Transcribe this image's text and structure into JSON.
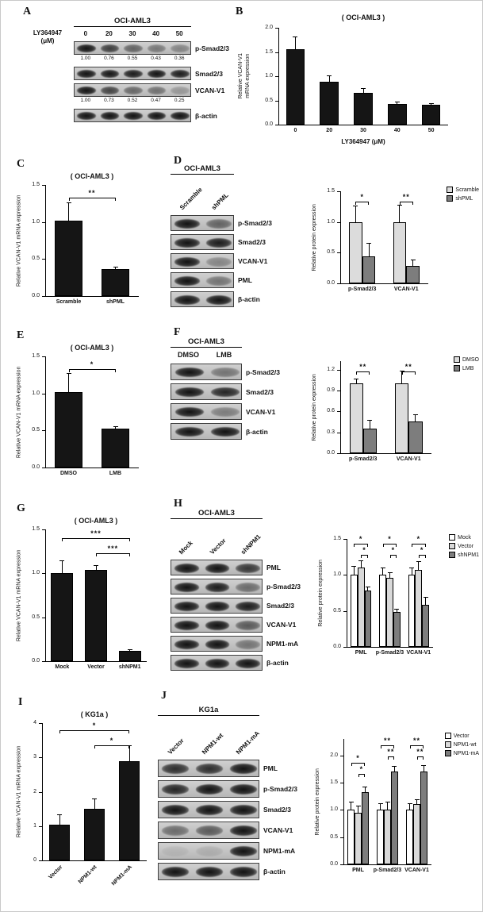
{
  "figure": {
    "panel_labels": [
      "A",
      "B",
      "C",
      "D",
      "E",
      "F",
      "G",
      "H",
      "I",
      "J"
    ]
  },
  "blots": [
    {
      "panel": "A",
      "title": "OCI-AML3",
      "title_underline": true,
      "treatment": {
        "line1": "LY364947",
        "line2": "(μM)"
      },
      "lanes": [
        "0",
        "20",
        "30",
        "40",
        "50"
      ],
      "lane_style": "horizontal",
      "rows": [
        {
          "name": "p-Smad2/3",
          "intensities": [
            1,
            0.76,
            0.55,
            0.43,
            0.36
          ],
          "values": [
            "1.00",
            "0.76",
            "0.55",
            "0.43",
            "0.36"
          ]
        },
        {
          "name": "Smad2/3",
          "intensities": [
            1,
            0.98,
            0.95,
            1,
            0.95
          ]
        },
        {
          "name": "VCAN-V1",
          "intensities": [
            1,
            0.73,
            0.52,
            0.47,
            0.25
          ],
          "values": [
            "1.00",
            "0.73",
            "0.52",
            "0.47",
            "0.25"
          ]
        },
        {
          "name": "β-actin",
          "intensities": [
            1,
            1,
            1,
            1,
            1
          ]
        }
      ]
    },
    {
      "panel": "D",
      "title": "OCI-AML3",
      "title_underline": true,
      "lanes": [
        "Scramble",
        "shPML"
      ],
      "lane_style": "rotated",
      "rows": [
        {
          "name": "p-Smad2/3",
          "intensities": [
            1,
            0.55
          ]
        },
        {
          "name": "Smad2/3",
          "intensities": [
            1,
            0.95
          ]
        },
        {
          "name": "VCAN-V1",
          "intensities": [
            1,
            0.35
          ]
        },
        {
          "name": "PML",
          "intensities": [
            1,
            0.45
          ]
        },
        {
          "name": "β-actin",
          "intensities": [
            1,
            1
          ]
        }
      ]
    },
    {
      "panel": "F",
      "title": "OCI-AML3",
      "title_underline": true,
      "lanes": [
        "DMSO",
        "LMB"
      ],
      "lane_style": "bold-horizontal",
      "rows": [
        {
          "name": "p-Smad2/3",
          "intensities": [
            1,
            0.45
          ]
        },
        {
          "name": "Smad2/3",
          "intensities": [
            1,
            0.9
          ]
        },
        {
          "name": "VCAN-V1",
          "intensities": [
            1,
            0.4
          ]
        },
        {
          "name": "β-actin",
          "intensities": [
            1,
            1
          ]
        }
      ]
    },
    {
      "panel": "H",
      "title": "OCI-AML3",
      "title_underline": true,
      "lanes": [
        "Mock",
        "Vector",
        "shNPM1"
      ],
      "lane_style": "rotated",
      "rows": [
        {
          "name": "PML",
          "intensities": [
            1,
            1,
            0.8
          ]
        },
        {
          "name": "p-Smad2/3",
          "intensities": [
            1,
            0.95,
            0.5
          ]
        },
        {
          "name": "Smad2/3",
          "intensities": [
            1,
            1,
            0.95
          ]
        },
        {
          "name": "VCAN-V1",
          "intensities": [
            1,
            1,
            0.6
          ]
        },
        {
          "name": "NPM1-mA",
          "intensities": [
            1,
            1,
            0.45
          ]
        },
        {
          "name": "β-actin",
          "intensities": [
            1,
            1,
            1
          ]
        }
      ]
    },
    {
      "panel": "J",
      "title": "KG1a",
      "title_underline": true,
      "lanes": [
        "Vector",
        "NPM1-wt",
        "NPM1-mA"
      ],
      "lane_style": "rotated",
      "rows": [
        {
          "name": "PML",
          "intensities": [
            0.85,
            0.85,
            1
          ]
        },
        {
          "name": "p-Smad2/3",
          "intensities": [
            0.9,
            1,
            1
          ]
        },
        {
          "name": "Smad2/3",
          "intensities": [
            1,
            1,
            1
          ]
        },
        {
          "name": "VCAN-V1",
          "intensities": [
            0.5,
            0.6,
            1
          ]
        },
        {
          "name": "NPM1-mA",
          "intensities": [
            0.08,
            0.12,
            1
          ]
        },
        {
          "name": "β-actin",
          "intensities": [
            1,
            1,
            1
          ]
        }
      ]
    }
  ],
  "chart_data": [
    {
      "panel": "B",
      "type": "bar",
      "title": "( OCI-AML3 )",
      "ylabel": "Relative VCAN-V1\nmRNA expression",
      "xlabel": "LY364947 (μM)",
      "ylim": [
        0,
        2.0
      ],
      "yticks": [
        0,
        0.5,
        1.0,
        1.5,
        2.0
      ],
      "ytick_labels": [
        "0.0",
        "0.5",
        "1.0",
        "1.5",
        "2.0"
      ],
      "categories": [
        "0",
        "20",
        "30",
        "40",
        "50"
      ],
      "series": [
        {
          "name": "",
          "color": "#151515",
          "values": [
            1.55,
            0.88,
            0.65,
            0.42,
            0.41
          ],
          "errors": [
            0.27,
            0.13,
            0.1,
            0.05,
            0.04
          ]
        }
      ],
      "sig": []
    },
    {
      "panel": "C",
      "type": "bar",
      "title": "( OCI-AML3 )",
      "ylabel": "Relative VCAN-V1 mRNA expression",
      "ylim": [
        0,
        1.5
      ],
      "yticks": [
        0,
        0.5,
        1.0,
        1.5
      ],
      "ytick_labels": [
        "0.0",
        "0.5",
        "1.0",
        "1.5"
      ],
      "categories": [
        "Scramble",
        "shPML"
      ],
      "series": [
        {
          "name": "",
          "color": "#151515",
          "values": [
            1.02,
            0.36
          ],
          "errors": [
            0.24,
            0.04
          ]
        }
      ],
      "sig": [
        {
          "a": [
            0,
            0
          ],
          "b": [
            1,
            0
          ],
          "y": 1.33,
          "label": "**"
        }
      ]
    },
    {
      "panel": "D",
      "type": "bar",
      "title": "",
      "ylabel": "Relative protein expression",
      "ylim": [
        0,
        1.5
      ],
      "yticks": [
        0,
        0.5,
        1.0,
        1.5
      ],
      "ytick_labels": [
        "0.0",
        "0.5",
        "1.0",
        "1.5"
      ],
      "categories": [
        "p-Smad2/3",
        "VCAN-V1"
      ],
      "series": [
        {
          "name": "Scramble",
          "color": "#dcdcdc",
          "values": [
            1.0,
            1.0
          ],
          "errors": [
            0.27,
            0.28
          ]
        },
        {
          "name": "shPML",
          "color": "#7d7d7d",
          "values": [
            0.44,
            0.29
          ],
          "errors": [
            0.22,
            0.1
          ]
        }
      ],
      "sig": [
        {
          "a": [
            0,
            0
          ],
          "b": [
            0,
            1
          ],
          "y": 1.33,
          "label": "*"
        },
        {
          "a": [
            1,
            0
          ],
          "b": [
            1,
            1
          ],
          "y": 1.33,
          "label": "**"
        }
      ]
    },
    {
      "panel": "E",
      "type": "bar",
      "title": "( OCI-AML3 )",
      "ylabel": "Relative VCAN-V1 mRNA expression",
      "ylim": [
        0,
        1.5
      ],
      "yticks": [
        0,
        0.5,
        1.0,
        1.5
      ],
      "ytick_labels": [
        "0.0",
        "0.5",
        "1.0",
        "1.5"
      ],
      "categories": [
        "DMSO",
        "LMB"
      ],
      "series": [
        {
          "name": "",
          "color": "#151515",
          "values": [
            1.02,
            0.52
          ],
          "errors": [
            0.25,
            0.04
          ]
        }
      ],
      "sig": [
        {
          "a": [
            0,
            0
          ],
          "b": [
            1,
            0
          ],
          "y": 1.33,
          "label": "*"
        }
      ]
    },
    {
      "panel": "F",
      "type": "bar",
      "title": "",
      "ylabel": "Relative protein expression",
      "ylim": [
        0,
        1.32
      ],
      "yticks": [
        0,
        0.3,
        0.6,
        0.9,
        1.2
      ],
      "ytick_labels": [
        "0.0",
        "0.3",
        "0.6",
        "0.9",
        "1.2"
      ],
      "categories": [
        "p-Smad2/3",
        "VCAN-V1"
      ],
      "series": [
        {
          "name": "DMSO",
          "color": "#dcdcdc",
          "values": [
            1.0,
            1.0
          ],
          "errors": [
            0.07,
            0.18
          ]
        },
        {
          "name": "LMB",
          "color": "#7d7d7d",
          "values": [
            0.35,
            0.46
          ],
          "errors": [
            0.13,
            0.1
          ]
        }
      ],
      "sig": [
        {
          "a": [
            0,
            0
          ],
          "b": [
            0,
            1
          ],
          "y": 1.17,
          "label": "**"
        },
        {
          "a": [
            1,
            0
          ],
          "b": [
            1,
            1
          ],
          "y": 1.17,
          "label": "**"
        }
      ]
    },
    {
      "panel": "G",
      "type": "bar",
      "title": "( OCI-AML3 )",
      "ylabel": "Relative VCAN-V1 mRNA expression",
      "ylim": [
        0,
        1.5
      ],
      "yticks": [
        0,
        0.5,
        1.0,
        1.5
      ],
      "ytick_labels": [
        "0.0",
        "0.5",
        "1.0",
        "1.5"
      ],
      "categories": [
        "Mock",
        "Vector",
        "shNPM1"
      ],
      "series": [
        {
          "name": "",
          "color": "#151515",
          "values": [
            1.0,
            1.04,
            0.12
          ],
          "errors": [
            0.15,
            0.05,
            0.02
          ]
        }
      ],
      "sig": [
        {
          "a": [
            0,
            0
          ],
          "b": [
            2,
            0
          ],
          "y": 1.4,
          "label": "***"
        },
        {
          "a": [
            1,
            0
          ],
          "b": [
            2,
            0
          ],
          "y": 1.23,
          "label": "***"
        }
      ]
    },
    {
      "panel": "H",
      "type": "bar",
      "title": "",
      "ylabel": "Relative protein expression",
      "ylim": [
        0,
        1.5
      ],
      "yticks": [
        0,
        0.5,
        1.0,
        1.5
      ],
      "ytick_labels": [
        "0.0",
        "0.5",
        "1.0",
        "1.5"
      ],
      "categories": [
        "PML",
        "p-Smad2/3",
        "VCAN-V1"
      ],
      "series": [
        {
          "name": "Mock",
          "color": "#ffffff",
          "values": [
            1.0,
            1.0,
            1.0
          ],
          "errors": [
            0.12,
            0.1,
            0.1
          ]
        },
        {
          "name": "Vector",
          "color": "#d9d9d9",
          "values": [
            1.1,
            0.96,
            1.07
          ],
          "errors": [
            0.1,
            0.08,
            0.12
          ]
        },
        {
          "name": "shNPM1",
          "color": "#7d7d7d",
          "values": [
            0.78,
            0.48,
            0.58
          ],
          "errors": [
            0.06,
            0.05,
            0.12
          ]
        }
      ],
      "sig": [
        {
          "a": [
            0,
            0
          ],
          "b": [
            0,
            2
          ],
          "y": 1.43,
          "label": "*"
        },
        {
          "a": [
            0,
            1
          ],
          "b": [
            0,
            2
          ],
          "y": 1.28,
          "label": "*"
        },
        {
          "a": [
            1,
            0
          ],
          "b": [
            1,
            2
          ],
          "y": 1.43,
          "label": "*"
        },
        {
          "a": [
            1,
            1
          ],
          "b": [
            1,
            2
          ],
          "y": 1.28,
          "label": "*"
        },
        {
          "a": [
            2,
            0
          ],
          "b": [
            2,
            2
          ],
          "y": 1.43,
          "label": "*"
        },
        {
          "a": [
            2,
            1
          ],
          "b": [
            2,
            2
          ],
          "y": 1.28,
          "label": "*"
        }
      ]
    },
    {
      "panel": "I",
      "type": "bar",
      "title": "( KG1a )",
      "ylabel": "Relative VCAN-V1 mRNA expression",
      "ylim": [
        0,
        4
      ],
      "yticks": [
        0,
        1,
        2,
        3,
        4
      ],
      "ytick_labels": [
        "0",
        "1",
        "2",
        "3",
        "4"
      ],
      "categories": [
        "Vector",
        "NPM1-wt",
        "NPM1-mA"
      ],
      "series": [
        {
          "name": "",
          "color": "#151515",
          "values": [
            1.05,
            1.5,
            2.9
          ],
          "errors": [
            0.3,
            0.3,
            0.45
          ]
        }
      ],
      "sig": [
        {
          "a": [
            0,
            0
          ],
          "b": [
            2,
            0
          ],
          "y": 3.8,
          "label": "*"
        },
        {
          "a": [
            1,
            0
          ],
          "b": [
            2,
            0
          ],
          "y": 3.35,
          "label": "*"
        }
      ]
    },
    {
      "panel": "J",
      "type": "bar",
      "title": "",
      "ylabel": "Relative protein expression",
      "ylim": [
        0,
        2.3
      ],
      "yticks": [
        0,
        0.5,
        1.0,
        1.5,
        2.0
      ],
      "ytick_labels": [
        "0.0",
        "0.5",
        "1.0",
        "1.5",
        "2.0"
      ],
      "categories": [
        "PML",
        "p-Smad2/3",
        "VCAN-V1"
      ],
      "series": [
        {
          "name": "Vector",
          "color": "#ffffff",
          "values": [
            1.0,
            1.0,
            1.0
          ],
          "errors": [
            0.15,
            0.12,
            0.12
          ]
        },
        {
          "name": "NPM1-wt",
          "color": "#d9d9d9",
          "values": [
            0.95,
            1.0,
            1.1
          ],
          "errors": [
            0.12,
            0.15,
            0.1
          ]
        },
        {
          "name": "NPM1-mA",
          "color": "#7d7d7d",
          "values": [
            1.32,
            1.7,
            1.7
          ],
          "errors": [
            0.1,
            0.1,
            0.12
          ]
        }
      ],
      "sig": [
        {
          "a": [
            0,
            0
          ],
          "b": [
            0,
            2
          ],
          "y": 1.86,
          "label": "*"
        },
        {
          "a": [
            0,
            1
          ],
          "b": [
            0,
            2
          ],
          "y": 1.66,
          "label": "*"
        },
        {
          "a": [
            1,
            0
          ],
          "b": [
            1,
            2
          ],
          "y": 2.18,
          "label": "**"
        },
        {
          "a": [
            1,
            1
          ],
          "b": [
            1,
            2
          ],
          "y": 1.98,
          "label": "**"
        },
        {
          "a": [
            2,
            0
          ],
          "b": [
            2,
            2
          ],
          "y": 2.18,
          "label": "**"
        },
        {
          "a": [
            2,
            1
          ],
          "b": [
            2,
            2
          ],
          "y": 1.98,
          "label": "**"
        }
      ]
    }
  ]
}
